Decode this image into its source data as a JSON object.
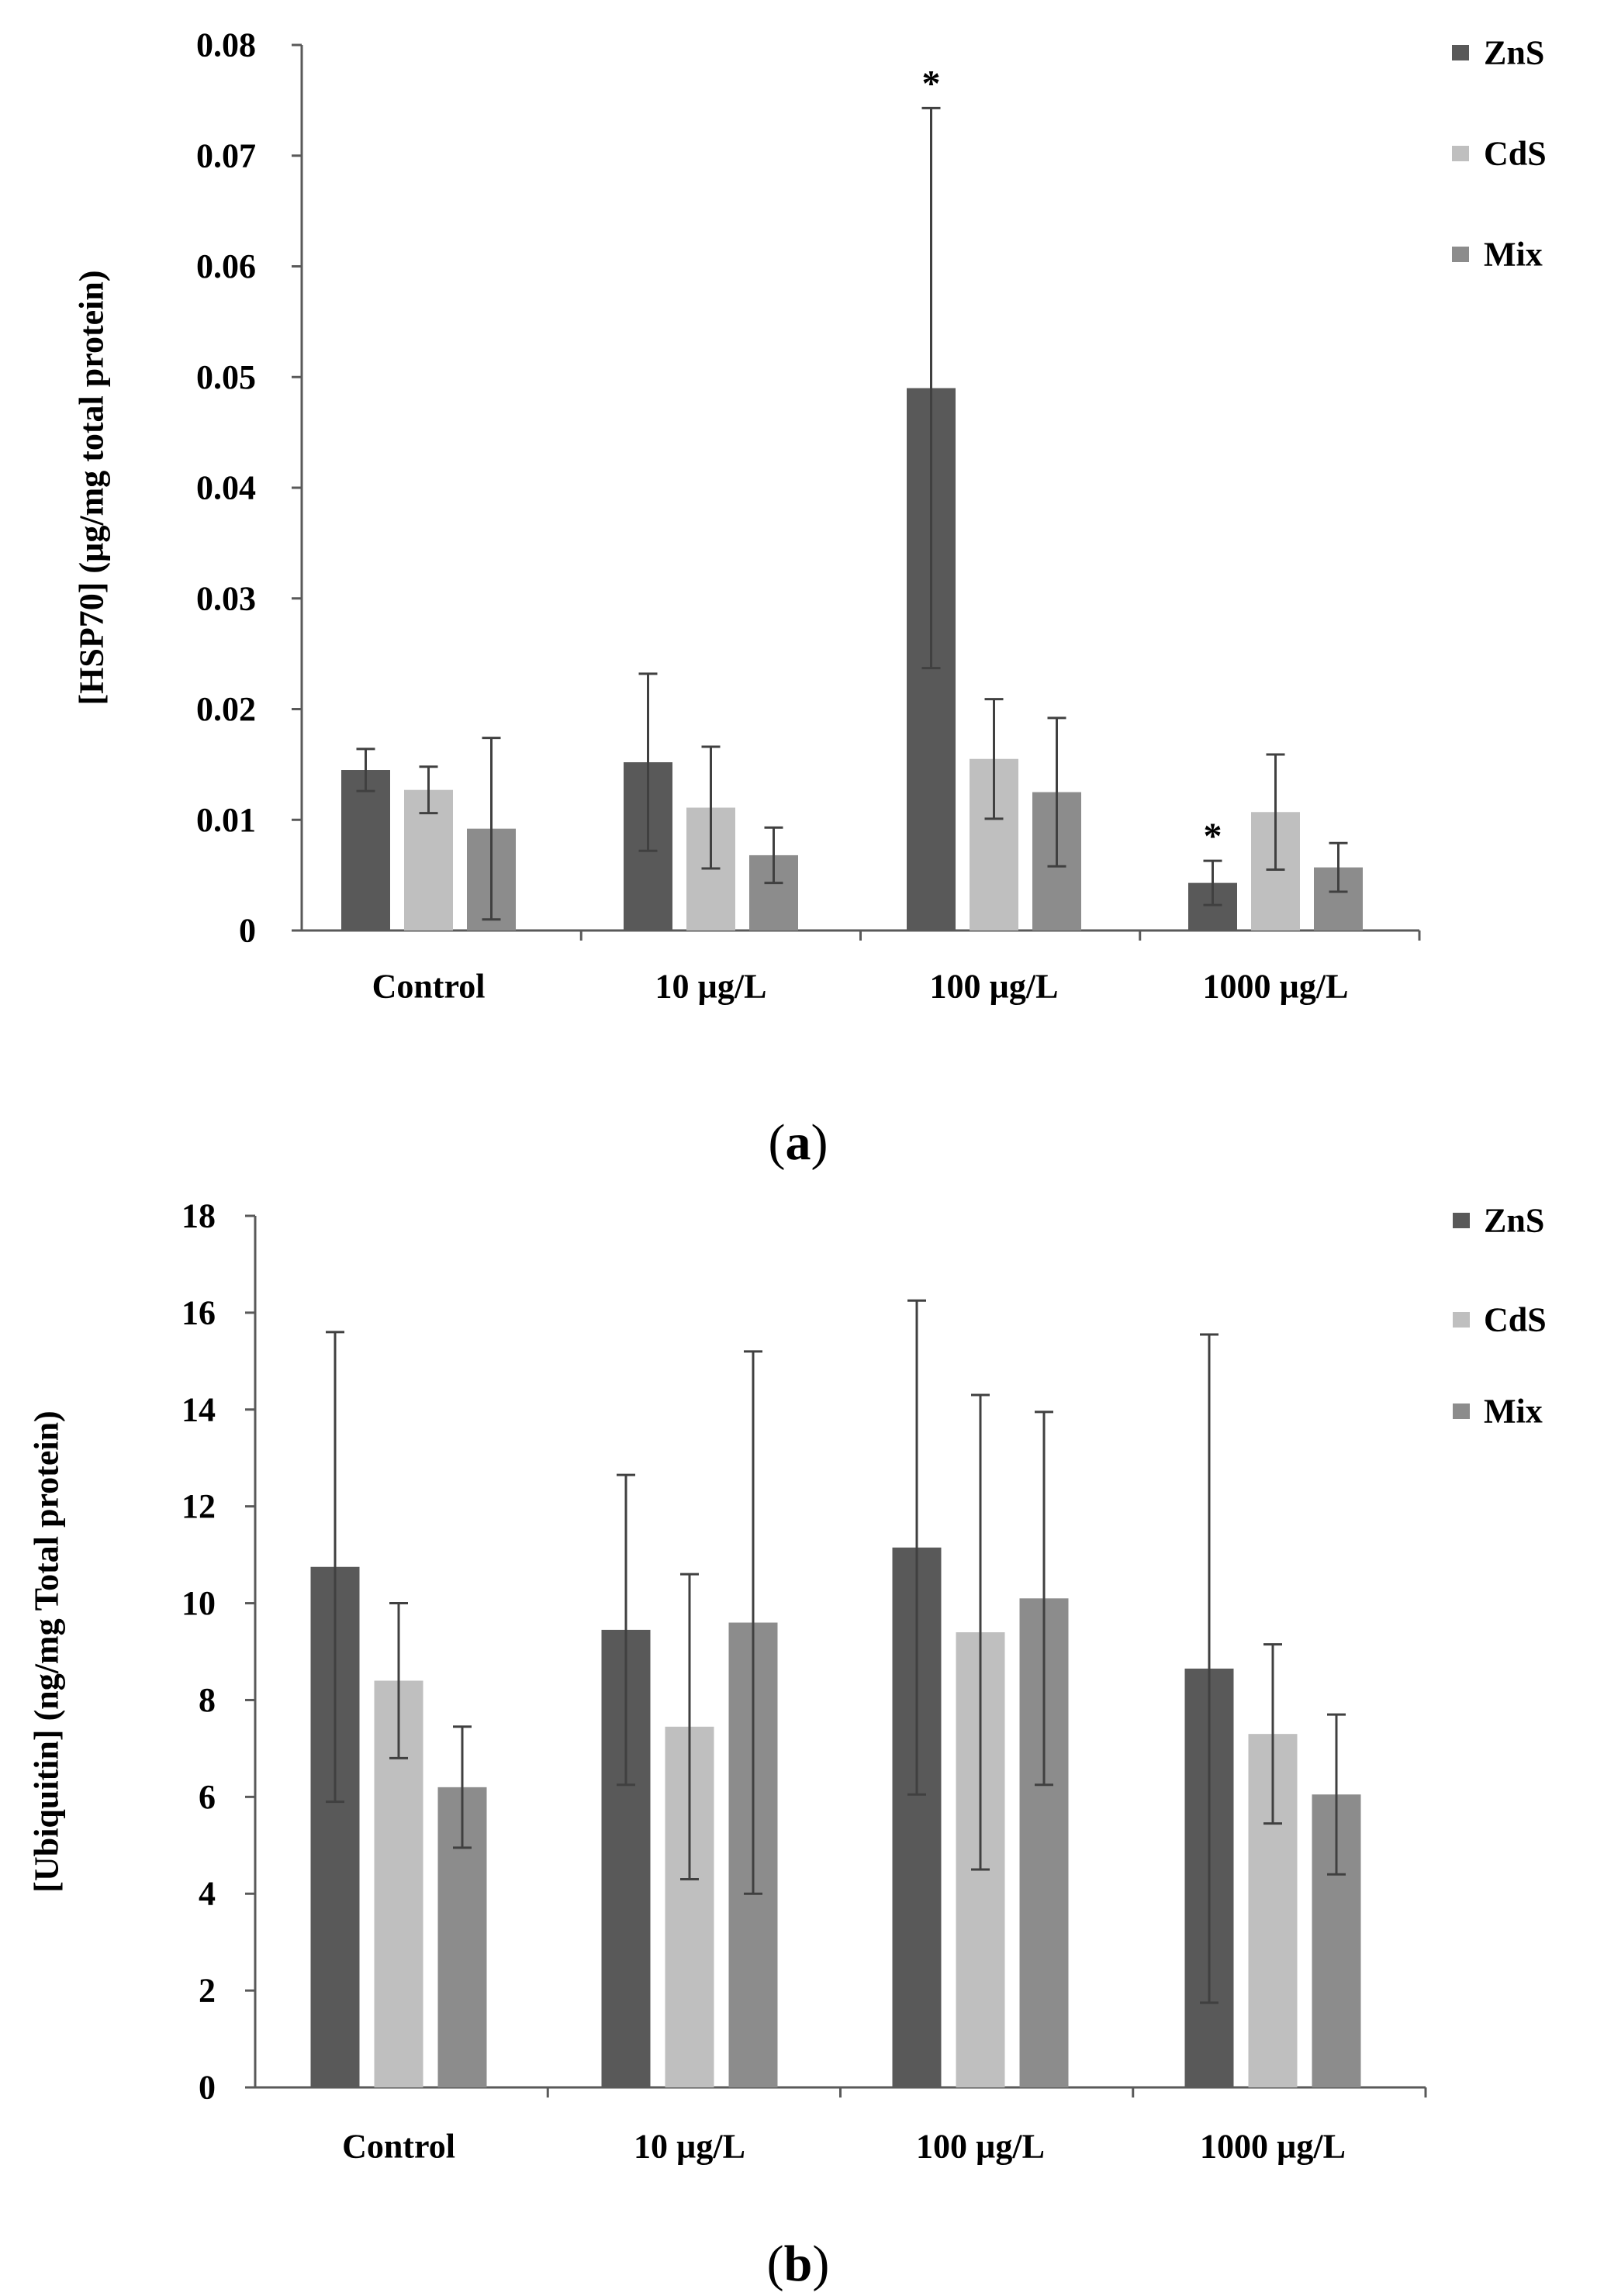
{
  "chart_data": [
    {
      "type": "bar",
      "panel_label": "a",
      "ylabel": "[HSP70] (µg/mg total protein)",
      "xlabel": "",
      "categories": [
        "Control",
        "10 µg/L",
        "100 µg/L",
        "1000 µg/L"
      ],
      "ylim": [
        0,
        0.08
      ],
      "yticks": [
        0,
        0.01,
        0.02,
        0.03,
        0.04,
        0.05,
        0.06,
        0.07,
        0.08
      ],
      "ytick_labels": [
        "0",
        "0.01",
        "0.02",
        "0.03",
        "0.04",
        "0.05",
        "0.06",
        "0.07",
        "0.08"
      ],
      "legend_position": "top-right",
      "series": [
        {
          "name": "ZnS",
          "color": "#595959",
          "values": [
            0.0145,
            0.0152,
            0.049,
            0.0043
          ],
          "errors": [
            0.0019,
            0.008,
            0.0253,
            0.002
          ]
        },
        {
          "name": "CdS",
          "color": "#bfbfbf",
          "values": [
            0.0127,
            0.0111,
            0.0155,
            0.0107
          ],
          "errors": [
            0.0021,
            0.0055,
            0.0054,
            0.0052
          ]
        },
        {
          "name": "Mix",
          "color": "#8c8c8c",
          "values": [
            0.0092,
            0.0068,
            0.0125,
            0.0057
          ],
          "errors": [
            0.0082,
            0.0025,
            0.0067,
            0.0022
          ]
        }
      ],
      "annotations": [
        {
          "series": "ZnS",
          "category": "100 µg/L",
          "text": "*"
        },
        {
          "series": "ZnS",
          "category": "1000 µg/L",
          "text": "*"
        }
      ]
    },
    {
      "type": "bar",
      "panel_label": "b",
      "ylabel": "[Ubiquitin] (ng/mg Total protein)",
      "xlabel": "",
      "categories": [
        "Control",
        "10 µg/L",
        "100 µg/L",
        "1000 µg/L"
      ],
      "ylim": [
        0,
        18
      ],
      "yticks": [
        0,
        2,
        4,
        6,
        8,
        10,
        12,
        14,
        16,
        18
      ],
      "ytick_labels": [
        "0",
        "2",
        "4",
        "6",
        "8",
        "10",
        "12",
        "14",
        "16",
        "18"
      ],
      "legend_position": "top-right",
      "series": [
        {
          "name": "ZnS",
          "color": "#595959",
          "values": [
            10.75,
            9.45,
            11.15,
            8.65
          ],
          "errors": [
            4.85,
            3.2,
            5.1,
            6.9
          ]
        },
        {
          "name": "CdS",
          "color": "#bfbfbf",
          "values": [
            8.4,
            7.45,
            9.4,
            7.3
          ],
          "errors": [
            1.6,
            3.15,
            4.9,
            1.85
          ]
        },
        {
          "name": "Mix",
          "color": "#8c8c8c",
          "values": [
            6.2,
            9.6,
            10.1,
            6.05
          ],
          "errors": [
            1.25,
            5.6,
            3.85,
            1.65
          ]
        }
      ],
      "annotations": []
    }
  ]
}
